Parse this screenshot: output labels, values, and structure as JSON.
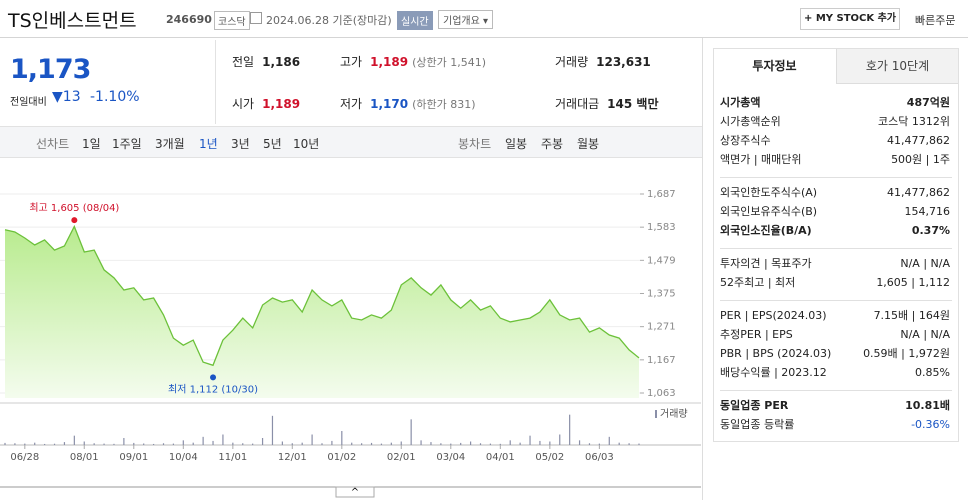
{
  "header": {
    "name": "TS인베스트먼트",
    "code": "246690",
    "market": "코스닥",
    "date": "2024.06.28",
    "basis": "기준(장마감)",
    "badge": "실시간",
    "menu": "기업개요",
    "mystock": "MY STOCK 추가",
    "quick": "빠른주문"
  },
  "price": {
    "current": "1,173",
    "change_label": "전일대비",
    "change": "13",
    "rate": "-1.10%"
  },
  "stats": [
    {
      "label": "전일",
      "value": "1,186"
    },
    {
      "label": "고가",
      "value": "1,189",
      "extra": "(상한가 1,541)"
    },
    {
      "label": "거래량",
      "value": "123,631"
    },
    {
      "label": "시가",
      "value": "1,189"
    },
    {
      "label": "저가",
      "value": "1,170",
      "extra": "(하한가 831)"
    },
    {
      "label": "거래대금",
      "value": "145 백만"
    }
  ],
  "tabs": {
    "line_label": "선차트",
    "line": [
      "1일",
      "1주일",
      "3개월",
      "1년",
      "3년",
      "5년",
      "10년"
    ],
    "candle_label": "봉차트",
    "candle": [
      "일봉",
      "주봉",
      "월봉"
    ]
  },
  "chart_data": {
    "type": "line",
    "categories": [
      null,
      null,
      "06/28",
      null,
      null,
      null,
      null,
      null,
      "08/01",
      null,
      null,
      null,
      null,
      "09/01",
      null,
      null,
      null,
      null,
      "10/04",
      null,
      null,
      null,
      null,
      "11/01",
      null,
      null,
      null,
      null,
      null,
      "12/01",
      null,
      null,
      null,
      null,
      "01/02",
      null,
      null,
      null,
      null,
      null,
      "02/01",
      null,
      null,
      null,
      null,
      "03/04",
      null,
      null,
      null,
      null,
      "04/01",
      null,
      null,
      null,
      null,
      "05/02",
      null,
      null,
      null,
      null,
      "06/03",
      null,
      null,
      null,
      null
    ],
    "series": [
      {
        "name": "종가",
        "color": "#6cc13a",
        "values": [
          1575,
          1568,
          1549,
          1527,
          1543,
          1511,
          1524,
          1585,
          1505,
          1511,
          1449,
          1424,
          1386,
          1393,
          1355,
          1361,
          1308,
          1235,
          1213,
          1229,
          1160,
          1150,
          1229,
          1260,
          1298,
          1267,
          1339,
          1361,
          1348,
          1355,
          1317,
          1386,
          1355,
          1336,
          1355,
          1298,
          1292,
          1308,
          1298,
          1323,
          1402,
          1424,
          1393,
          1370,
          1402,
          1355,
          1329,
          1355,
          1323,
          1336,
          1298,
          1286,
          1292,
          1298,
          1317,
          1355,
          1308,
          1292,
          1298,
          1254,
          1267,
          1245,
          1235,
          1198,
          1173
        ]
      }
    ],
    "volume": {
      "name": "거래량",
      "color": "#8a8fa8",
      "ylim": [
        0,
        3000000
      ],
      "values": [
        180000,
        150000,
        120000,
        200000,
        90000,
        110000,
        250000,
        800000,
        300000,
        150000,
        120000,
        100000,
        600000,
        180000,
        130000,
        90000,
        150000,
        120000,
        400000,
        200000,
        700000,
        350000,
        900000,
        200000,
        150000,
        120000,
        600000,
        2500000,
        300000,
        150000,
        200000,
        900000,
        150000,
        350000,
        1200000,
        200000,
        150000,
        180000,
        120000,
        200000,
        300000,
        2200000,
        400000,
        250000,
        150000,
        120000,
        180000,
        300000,
        150000,
        120000,
        100000,
        400000,
        200000,
        800000,
        350000,
        300000,
        900000,
        2600000,
        400000,
        150000,
        120000,
        700000,
        200000,
        150000,
        123631
      ]
    },
    "ylim": [
      1063,
      1687
    ],
    "yticks": [
      {
        "value": 1063,
        "label": "1,063"
      },
      {
        "value": 1167,
        "label": "1,167"
      },
      {
        "value": 1271,
        "label": "1,271"
      },
      {
        "value": 1375,
        "label": "1,375"
      },
      {
        "value": 1479,
        "label": "1,479"
      },
      {
        "value": 1583,
        "label": "1,583"
      },
      {
        "value": 1687,
        "label": "1,687"
      }
    ],
    "high": {
      "text": "최고 1,605 (08/04)",
      "value": 1605
    },
    "low": {
      "text": "최저 1,112 (10/30)",
      "value": 1112
    }
  },
  "panel": {
    "tabs": [
      "투자정보",
      "호가 10단계"
    ],
    "groups": [
      [
        {
          "label": "시가총액",
          "value": "487억원",
          "bold": true
        },
        {
          "label": "시가총액순위",
          "value": "코스닥 1312위"
        },
        {
          "label": "상장주식수",
          "value": "41,477,862"
        },
        {
          "label": "액면가 | 매매단위",
          "value": "500원 | 1주"
        }
      ],
      [
        {
          "label": "외국인한도주식수(A)",
          "value": "41,477,862"
        },
        {
          "label": "외국인보유주식수(B)",
          "value": "154,716"
        },
        {
          "label": "외국인소진율(B/A)",
          "value": "0.37%",
          "bold": true
        }
      ],
      [
        {
          "label": "투자의견 | 목표주가",
          "value": "N/A | N/A"
        },
        {
          "label": "52주최고 | 최저",
          "value": "1,605 | 1,112"
        }
      ],
      [
        {
          "label": "PER | EPS(2024.03)",
          "value": "7.15배 | 164원"
        },
        {
          "label": "추정PER | EPS",
          "value": "N/A | N/A"
        },
        {
          "label": "PBR | BPS (2024.03)",
          "value": "0.59배 | 1,972원"
        },
        {
          "label": "배당수익률 | 2023.12",
          "value": "0.85%"
        }
      ],
      [
        {
          "label": "동일업종 PER",
          "value": "10.81배",
          "bold": true
        },
        {
          "label": "동일업종 등락률",
          "value": "-0.36%",
          "blue": true
        }
      ]
    ]
  }
}
